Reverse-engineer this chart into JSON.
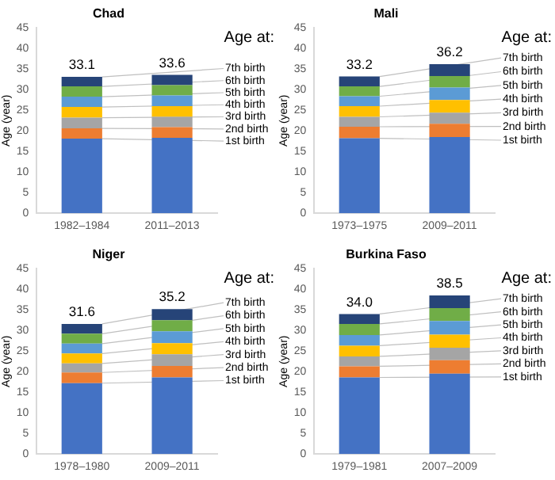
{
  "chart_data": [
    {
      "type": "bar",
      "stacked": true,
      "title": "Chad",
      "ylabel": "Age (year)",
      "legend_title": "Age at:",
      "categories": [
        "1982–1984",
        "2011–2013"
      ],
      "ylim": [
        0,
        45
      ],
      "yticks": [
        0,
        5,
        10,
        15,
        20,
        25,
        30,
        35,
        40,
        45
      ],
      "grid": false,
      "totals": [
        "33.1",
        "33.6"
      ],
      "series": [
        {
          "name": "1st birth",
          "color": "#4472c4",
          "values": [
            18.1,
            18.3
          ]
        },
        {
          "name": "2nd birth",
          "color": "#ed7d31",
          "values": [
            2.5,
            2.6
          ]
        },
        {
          "name": "3rd birth",
          "color": "#a5a5a5",
          "values": [
            2.6,
            2.5
          ]
        },
        {
          "name": "4th birth",
          "color": "#ffc000",
          "values": [
            2.6,
            2.6
          ]
        },
        {
          "name": "5th birth",
          "color": "#5b9bd5",
          "values": [
            2.5,
            2.6
          ]
        },
        {
          "name": "6th birth",
          "color": "#70ad47",
          "values": [
            2.5,
            2.5
          ]
        },
        {
          "name": "7th birth",
          "color": "#264478",
          "values": [
            2.3,
            2.5
          ]
        }
      ]
    },
    {
      "type": "bar",
      "stacked": true,
      "title": "Mali",
      "ylabel": "Age (year)",
      "legend_title": "Age at:",
      "categories": [
        "1973–1975",
        "2009–2011"
      ],
      "ylim": [
        0,
        45
      ],
      "yticks": [
        0,
        5,
        10,
        15,
        20,
        25,
        30,
        35,
        40,
        45
      ],
      "grid": false,
      "totals": [
        "33.2",
        "36.2"
      ],
      "series": [
        {
          "name": "1st birth",
          "color": "#4472c4",
          "values": [
            18.2,
            18.5
          ]
        },
        {
          "name": "2nd birth",
          "color": "#ed7d31",
          "values": [
            2.8,
            3.2
          ]
        },
        {
          "name": "3rd birth",
          "color": "#a5a5a5",
          "values": [
            2.4,
            2.7
          ]
        },
        {
          "name": "4th birth",
          "color": "#ffc000",
          "values": [
            2.6,
            3.1
          ]
        },
        {
          "name": "5th birth",
          "color": "#5b9bd5",
          "values": [
            2.4,
            3.0
          ]
        },
        {
          "name": "6th birth",
          "color": "#70ad47",
          "values": [
            2.4,
            2.8
          ]
        },
        {
          "name": "7th birth",
          "color": "#264478",
          "values": [
            2.4,
            2.9
          ]
        }
      ]
    },
    {
      "type": "bar",
      "stacked": true,
      "title": "Niger",
      "ylabel": "Age (year)",
      "legend_title": "Age at:",
      "categories": [
        "1978–1980",
        "2009–2011"
      ],
      "ylim": [
        0,
        45
      ],
      "yticks": [
        0,
        5,
        10,
        15,
        20,
        25,
        30,
        35,
        40,
        45
      ],
      "grid": false,
      "totals": [
        "31.6",
        "35.2"
      ],
      "series": [
        {
          "name": "1st birth",
          "color": "#4472c4",
          "values": [
            17.2,
            18.6
          ]
        },
        {
          "name": "2nd birth",
          "color": "#ed7d31",
          "values": [
            2.6,
            2.8
          ]
        },
        {
          "name": "3rd birth",
          "color": "#a5a5a5",
          "values": [
            2.2,
            2.8
          ]
        },
        {
          "name": "4th birth",
          "color": "#ffc000",
          "values": [
            2.4,
            2.7
          ]
        },
        {
          "name": "5th birth",
          "color": "#5b9bd5",
          "values": [
            2.4,
            2.9
          ]
        },
        {
          "name": "6th birth",
          "color": "#70ad47",
          "values": [
            2.4,
            2.7
          ]
        },
        {
          "name": "7th birth",
          "color": "#264478",
          "values": [
            2.4,
            2.7
          ]
        }
      ]
    },
    {
      "type": "bar",
      "stacked": true,
      "title": "Burkina Faso",
      "ylabel": "Age (year)",
      "legend_title": "Age at:",
      "categories": [
        "1979–1981",
        "2007–2009"
      ],
      "ylim": [
        0,
        45
      ],
      "yticks": [
        0,
        5,
        10,
        15,
        20,
        25,
        30,
        35,
        40,
        45
      ],
      "grid": false,
      "totals": [
        "34.0",
        "38.5"
      ],
      "series": [
        {
          "name": "1st birth",
          "color": "#4472c4",
          "values": [
            18.6,
            19.5
          ]
        },
        {
          "name": "2nd birth",
          "color": "#ed7d31",
          "values": [
            2.7,
            3.3
          ]
        },
        {
          "name": "3rd birth",
          "color": "#a5a5a5",
          "values": [
            2.4,
            3.0
          ]
        },
        {
          "name": "4th birth",
          "color": "#ffc000",
          "values": [
            2.6,
            3.2
          ]
        },
        {
          "name": "5th birth",
          "color": "#5b9bd5",
          "values": [
            2.6,
            3.3
          ]
        },
        {
          "name": "6th birth",
          "color": "#70ad47",
          "values": [
            2.7,
            3.1
          ]
        },
        {
          "name": "7th birth",
          "color": "#264478",
          "values": [
            2.4,
            3.1
          ]
        }
      ]
    }
  ]
}
